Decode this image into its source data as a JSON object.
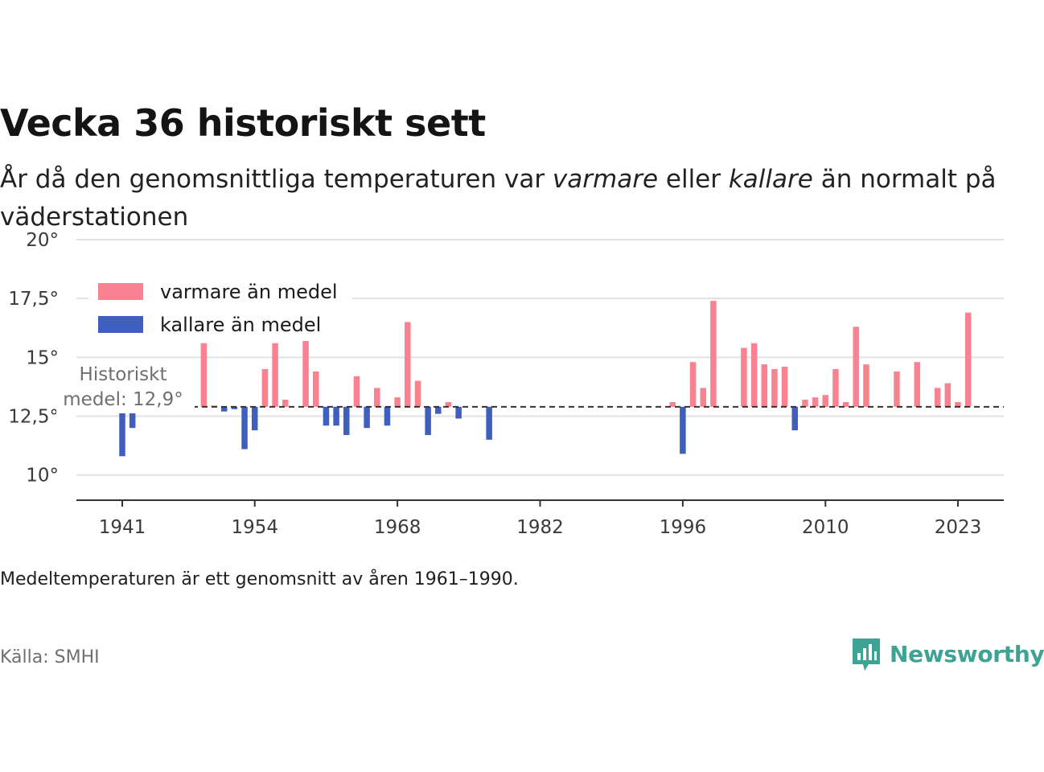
{
  "title": "Vecka 36 historiskt sett",
  "subtitle": {
    "part1": "År då den genomsnittliga temperaturen var ",
    "warm_word": "varmare",
    "part2": " eller ",
    "cold_word": "kallare",
    "part3": " än normalt på väderstationen"
  },
  "note": "Medeltemperaturen är ett genomsnitt av åren 1961–1990.",
  "source": "Källa: SMHI",
  "brand": "Newsworthy",
  "colors": {
    "warm": "#f8828f",
    "cold": "#3f5fbe",
    "brand": "#3fa394",
    "grid": "#e1e1e1",
    "axis": "#333333"
  },
  "chart_data": {
    "type": "bar",
    "baseline": 12.9,
    "baseline_label_line1": "Historiskt",
    "baseline_label_line2": "medel: 12,9°",
    "ylim": [
      9,
      20
    ],
    "yticks": [
      10,
      12.5,
      15,
      17.5,
      20
    ],
    "ytick_labels": [
      "10°",
      "12,5°",
      "15°",
      "17,5°",
      "20°"
    ],
    "xlim": [
      1936.5,
      2027.5
    ],
    "xticks": [
      1941,
      1954,
      1968,
      1982,
      1996,
      2010,
      2023
    ],
    "xtick_labels": [
      "1941",
      "1954",
      "1968",
      "1982",
      "1996",
      "2010",
      "2023"
    ],
    "legend": [
      {
        "label": "varmare än medel",
        "color_key": "warm"
      },
      {
        "label": "kallare än medel",
        "color_key": "cold"
      }
    ],
    "legend_position": "top-left",
    "bars": [
      {
        "year": 1941,
        "value": 10.8
      },
      {
        "year": 1942,
        "value": 12.0
      },
      {
        "year": 1949,
        "value": 15.6
      },
      {
        "year": 1950,
        "value": 12.9
      },
      {
        "year": 1951,
        "value": 12.7
      },
      {
        "year": 1952,
        "value": 12.8
      },
      {
        "year": 1953,
        "value": 11.1
      },
      {
        "year": 1954,
        "value": 11.9
      },
      {
        "year": 1955,
        "value": 14.5
      },
      {
        "year": 1956,
        "value": 15.6
      },
      {
        "year": 1957,
        "value": 13.2
      },
      {
        "year": 1959,
        "value": 16.0
      },
      {
        "year": 1960,
        "value": 14.4
      },
      {
        "year": 1961,
        "value": 12.1
      },
      {
        "year": 1962,
        "value": 12.1
      },
      {
        "year": 1963,
        "value": 11.7
      },
      {
        "year": 1964,
        "value": 14.2
      },
      {
        "year": 1965,
        "value": 12.0
      },
      {
        "year": 1966,
        "value": 13.7
      },
      {
        "year": 1967,
        "value": 12.1
      },
      {
        "year": 1968,
        "value": 13.3
      },
      {
        "year": 1969,
        "value": 16.5
      },
      {
        "year": 1970,
        "value": 14.0
      },
      {
        "year": 1971,
        "value": 11.7
      },
      {
        "year": 1972,
        "value": 12.6
      },
      {
        "year": 1973,
        "value": 13.1
      },
      {
        "year": 1974,
        "value": 12.4
      },
      {
        "year": 1977,
        "value": 11.5
      },
      {
        "year": 1995,
        "value": 13.1
      },
      {
        "year": 1996,
        "value": 10.9
      },
      {
        "year": 1997,
        "value": 14.8
      },
      {
        "year": 1998,
        "value": 13.7
      },
      {
        "year": 1999,
        "value": 17.4
      },
      {
        "year": 2002,
        "value": 15.4
      },
      {
        "year": 2003,
        "value": 15.6
      },
      {
        "year": 2004,
        "value": 14.7
      },
      {
        "year": 2005,
        "value": 14.5
      },
      {
        "year": 2006,
        "value": 14.6
      },
      {
        "year": 2007,
        "value": 11.9
      },
      {
        "year": 2008,
        "value": 13.2
      },
      {
        "year": 2009,
        "value": 13.3
      },
      {
        "year": 2010,
        "value": 13.4
      },
      {
        "year": 2011,
        "value": 14.5
      },
      {
        "year": 2012,
        "value": 13.1
      },
      {
        "year": 2013,
        "value": 16.3
      },
      {
        "year": 2014,
        "value": 14.7
      },
      {
        "year": 2017,
        "value": 14.4
      },
      {
        "year": 2019,
        "value": 14.8
      },
      {
        "year": 2021,
        "value": 13.7
      },
      {
        "year": 2022,
        "value": 13.9
      },
      {
        "year": 2023,
        "value": 13.1
      },
      {
        "year": 2024,
        "value": 16.9
      }
    ]
  }
}
